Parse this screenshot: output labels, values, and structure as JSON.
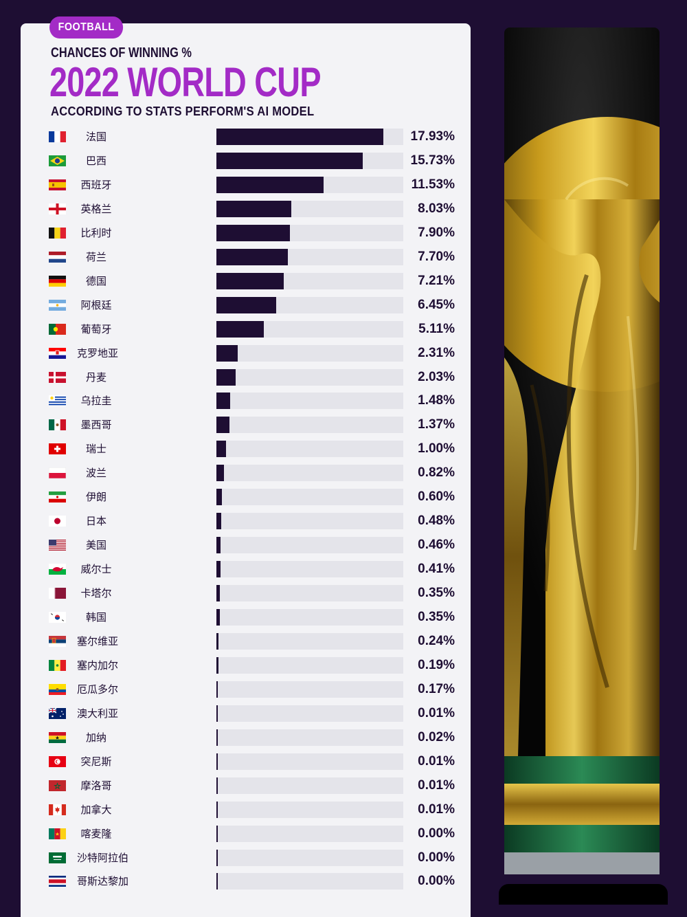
{
  "header": {
    "badge": "FOOTBALL",
    "kicker": "CHANCES OF WINNING %",
    "title": "2022 WORLD CUP",
    "subtitle": "ACCORDING TO STATS PERFORM'S AI MODEL"
  },
  "colors": {
    "background": "#1e0e33",
    "accent": "#a32bc6",
    "bar": "#1e0e33",
    "track": "#e4e4ea",
    "card": "#f3f3f6"
  },
  "chart_data": {
    "type": "bar",
    "orientation": "horizontal",
    "title": "2022 WORLD CUP",
    "subtitle": "ACCORDING TO STATS PERFORM'S AI MODEL",
    "xlim": [
      0,
      20
    ],
    "rows": [
      {
        "country": "法国",
        "value": 17.93,
        "label": "17.93%",
        "flag": "france-flag"
      },
      {
        "country": "巴西",
        "value": 15.73,
        "label": "15.73%",
        "flag": "brazil-flag"
      },
      {
        "country": "西班牙",
        "value": 11.53,
        "label": "11.53%",
        "flag": "spain-flag"
      },
      {
        "country": "英格兰",
        "value": 8.03,
        "label": "8.03%",
        "flag": "england-flag"
      },
      {
        "country": "比利时",
        "value": 7.9,
        "label": "7.90%",
        "flag": "belgium-flag"
      },
      {
        "country": "荷兰",
        "value": 7.7,
        "label": "7.70%",
        "flag": "netherlands-flag"
      },
      {
        "country": "德国",
        "value": 7.21,
        "label": "7.21%",
        "flag": "germany-flag"
      },
      {
        "country": "阿根廷",
        "value": 6.45,
        "label": "6.45%",
        "flag": "argentina-flag"
      },
      {
        "country": "葡萄牙",
        "value": 5.11,
        "label": "5.11%",
        "flag": "portugal-flag"
      },
      {
        "country": "克罗地亚",
        "value": 2.31,
        "label": "2.31%",
        "flag": "croatia-flag"
      },
      {
        "country": "丹麦",
        "value": 2.03,
        "label": "2.03%",
        "flag": "denmark-flag"
      },
      {
        "country": "乌拉圭",
        "value": 1.48,
        "label": "1.48%",
        "flag": "uruguay-flag"
      },
      {
        "country": "墨西哥",
        "value": 1.37,
        "label": "1.37%",
        "flag": "mexico-flag"
      },
      {
        "country": "瑞士",
        "value": 1.0,
        "label": "1.00%",
        "flag": "switzerland-flag"
      },
      {
        "country": "波兰",
        "value": 0.82,
        "label": "0.82%",
        "flag": "poland-flag"
      },
      {
        "country": "伊朗",
        "value": 0.6,
        "label": "0.60%",
        "flag": "iran-flag"
      },
      {
        "country": "日本",
        "value": 0.48,
        "label": "0.48%",
        "flag": "japan-flag"
      },
      {
        "country": "美国",
        "value": 0.46,
        "label": "0.46%",
        "flag": "usa-flag"
      },
      {
        "country": "威尔士",
        "value": 0.41,
        "label": "0.41%",
        "flag": "wales-flag"
      },
      {
        "country": "卡塔尔",
        "value": 0.35,
        "label": "0.35%",
        "flag": "qatar-flag"
      },
      {
        "country": "韩国",
        "value": 0.35,
        "label": "0.35%",
        "flag": "south-korea-flag"
      },
      {
        "country": "塞尔维亚",
        "value": 0.24,
        "label": "0.24%",
        "flag": "serbia-flag"
      },
      {
        "country": "塞内加尔",
        "value": 0.19,
        "label": "0.19%",
        "flag": "senegal-flag"
      },
      {
        "country": "厄瓜多尔",
        "value": 0.17,
        "label": "0.17%",
        "flag": "ecuador-flag"
      },
      {
        "country": "澳大利亚",
        "value": 0.01,
        "label": "0.01%",
        "flag": "australia-flag"
      },
      {
        "country": "加纳",
        "value": 0.02,
        "label": "0.02%",
        "flag": "ghana-flag"
      },
      {
        "country": "突尼斯",
        "value": 0.01,
        "label": "0.01%",
        "flag": "tunisia-flag"
      },
      {
        "country": "摩洛哥",
        "value": 0.01,
        "label": "0.01%",
        "flag": "morocco-flag"
      },
      {
        "country": "加拿大",
        "value": 0.01,
        "label": "0.01%",
        "flag": "canada-flag"
      },
      {
        "country": "喀麦隆",
        "value": 0.0,
        "label": "0.00%",
        "flag": "cameroon-flag"
      },
      {
        "country": "沙特阿拉伯",
        "value": 0.0,
        "label": "0.00%",
        "flag": "saudi-arabia-flag"
      },
      {
        "country": "哥斯达黎加",
        "value": 0.0,
        "label": "0.00%",
        "flag": "costa-rica-flag"
      }
    ]
  },
  "image": {
    "icon": "world-cup-trophy-photo"
  }
}
